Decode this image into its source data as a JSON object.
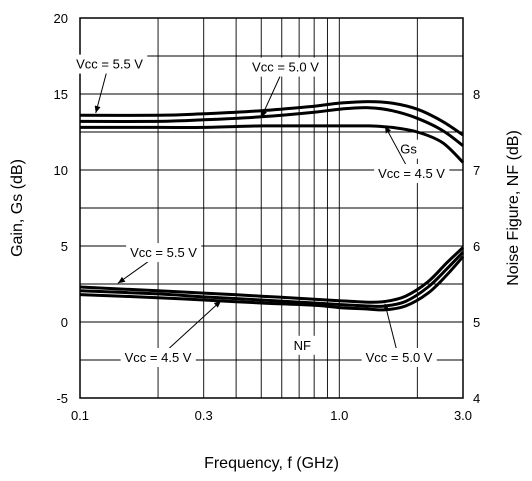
{
  "chart_data": {
    "type": "line",
    "xlabel": "Frequency, f (GHz)",
    "ylabel_left": "Gain, Gs (dB)",
    "ylabel_right": "Noise Figure, NF (dB)",
    "x_scale": "log",
    "xlim": [
      0.1,
      3.0
    ],
    "ylim_left": [
      -5,
      20
    ],
    "ylim_right": [
      4,
      9
    ],
    "grid": true,
    "x_ticks": [
      "0.1",
      "0.3",
      "1.0",
      "3.0"
    ],
    "y_left_ticks": [
      "20",
      "15",
      "10",
      "5",
      "0",
      "-5"
    ],
    "y_right_ticks": [
      "8",
      "7",
      "6",
      "5",
      "4"
    ],
    "curve_labels": [
      "Gs",
      "NF"
    ],
    "series": [
      {
        "name": "Gs, Vcc = 5.5 V",
        "axis": "left",
        "x": [
          0.1,
          0.2,
          0.3,
          0.5,
          0.8,
          1.0,
          1.3,
          1.6,
          2.0,
          2.5,
          3.0
        ],
        "y": [
          13.6,
          13.6,
          13.7,
          13.9,
          14.2,
          14.4,
          14.5,
          14.4,
          14.0,
          13.2,
          12.3
        ]
      },
      {
        "name": "Gs, Vcc = 5.0 V",
        "axis": "left",
        "x": [
          0.1,
          0.2,
          0.3,
          0.5,
          0.8,
          1.0,
          1.3,
          1.6,
          2.0,
          2.5,
          3.0
        ],
        "y": [
          13.2,
          13.2,
          13.3,
          13.5,
          13.8,
          14.0,
          14.1,
          13.9,
          13.4,
          12.6,
          11.6
        ]
      },
      {
        "name": "Gs, Vcc = 4.5 V",
        "axis": "left",
        "x": [
          0.1,
          0.2,
          0.3,
          0.5,
          0.8,
          1.0,
          1.3,
          1.6,
          2.0,
          2.5,
          3.0
        ],
        "y": [
          12.8,
          12.8,
          12.8,
          12.9,
          12.9,
          12.9,
          12.9,
          12.8,
          12.5,
          11.8,
          10.5
        ]
      },
      {
        "name": "NF, Vcc = 5.5 V",
        "axis": "right",
        "x": [
          0.1,
          0.2,
          0.3,
          0.5,
          0.8,
          1.0,
          1.3,
          1.5,
          1.8,
          2.2,
          2.6,
          3.0
        ],
        "y": [
          5.46,
          5.41,
          5.38,
          5.34,
          5.3,
          5.28,
          5.26,
          5.27,
          5.34,
          5.53,
          5.78,
          5.98
        ]
      },
      {
        "name": "NF, Vcc = 5.0 V",
        "axis": "right",
        "x": [
          0.1,
          0.2,
          0.3,
          0.5,
          0.8,
          1.0,
          1.3,
          1.5,
          1.8,
          2.2,
          2.6,
          3.0
        ],
        "y": [
          5.41,
          5.37,
          5.33,
          5.29,
          5.25,
          5.23,
          5.21,
          5.21,
          5.27,
          5.46,
          5.7,
          5.92
        ]
      },
      {
        "name": "NF, Vcc = 4.5 V",
        "axis": "right",
        "x": [
          0.1,
          0.2,
          0.3,
          0.5,
          0.8,
          1.0,
          1.3,
          1.5,
          1.8,
          2.2,
          2.6,
          3.0
        ],
        "y": [
          5.36,
          5.32,
          5.29,
          5.25,
          5.22,
          5.19,
          5.17,
          5.16,
          5.21,
          5.38,
          5.62,
          5.86
        ]
      }
    ],
    "annotations": [
      {
        "text": "Vcc = 5.5 V",
        "at_x": 0.13,
        "at_y": 17.0,
        "axis": "left",
        "arrow_to_x": 0.115,
        "arrow_to_y": 13.75
      },
      {
        "text": "Vcc = 5.0 V",
        "at_x": 0.62,
        "at_y": 16.8,
        "axis": "left",
        "arrow_to_x": 0.5,
        "arrow_to_y": 13.45
      },
      {
        "text": "Gs",
        "at_x": 1.85,
        "at_y": 11.4,
        "axis": "left"
      },
      {
        "text": "Vcc = 4.5 V",
        "at_x": 1.9,
        "at_y": 9.8,
        "axis": "left",
        "arrow_to_x": 1.5,
        "arrow_to_y": 12.9
      },
      {
        "text": "Vcc = 5.5 V",
        "at_x": 0.21,
        "at_y": 4.6,
        "axis": "left",
        "arrow_to_x": 0.14,
        "arrow_to_y": 2.55
      },
      {
        "text": "Vcc = 4.5 V",
        "at_x": 0.2,
        "at_y": -2.3,
        "axis": "left",
        "arrow_to_x": 0.35,
        "arrow_to_y": 1.4
      },
      {
        "text": "NF",
        "at_x": 0.72,
        "at_y": -1.5,
        "axis": "left"
      },
      {
        "text": "Vcc = 5.0 V",
        "at_x": 1.7,
        "at_y": -2.3,
        "axis": "left",
        "arrow_to_x": 1.5,
        "arrow_to_y": 1.2
      }
    ]
  }
}
